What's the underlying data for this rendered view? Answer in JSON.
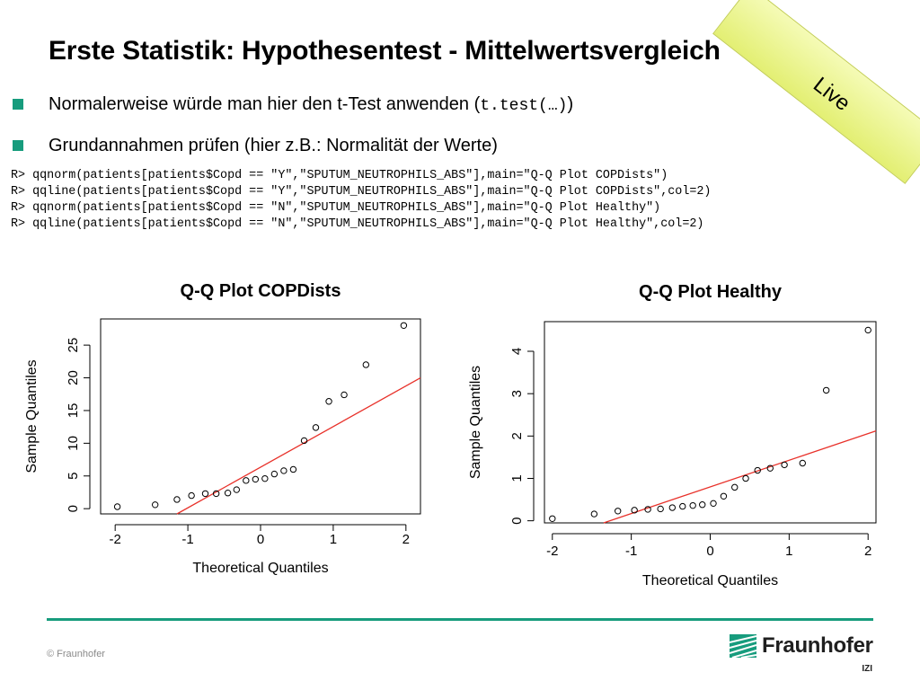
{
  "slide": {
    "title": "Erste Statistik: Hypothesentest - Mittelwertsvergleich",
    "bullets": [
      {
        "text": "Normalerweise würde man hier den t-Test anwenden (",
        "code": "t.test(…)",
        "suffix": ")"
      },
      {
        "text": "Grundannahmen prüfen (hier z.B.: Normalität der Werte)"
      }
    ],
    "code_lines": [
      "R> qqnorm(patients[patients$Copd == \"Y\",\"SPUTUM_NEUTROPHILS_ABS\"],main=\"Q-Q Plot COPDists\")",
      "R> qqline(patients[patients$Copd == \"Y\",\"SPUTUM_NEUTROPHILS_ABS\"],main=\"Q-Q Plot COPDists\",col=2)",
      "R> qqnorm(patients[patients$Copd == \"N\",\"SPUTUM_NEUTROPHILS_ABS\"],main=\"Q-Q Plot Healthy\")",
      "R> qqline(patients[patients$Copd == \"N\",\"SPUTUM_NEUTROPHILS_ABS\"],main=\"Q-Q Plot Healthy\",col=2)"
    ],
    "live_label": "Live"
  },
  "footer": {
    "copyright": "© Fraunhofer",
    "logo_name": "Fraunhofer",
    "logo_sub": "IZI",
    "accent_color": "#179c7d"
  },
  "chart_data": [
    {
      "type": "scatter",
      "title": "Q-Q Plot COPDists",
      "xlabel": "Theoretical Quantiles",
      "ylabel": "Sample Quantiles",
      "xlim": [
        -2.2,
        2.2
      ],
      "ylim": [
        -0.8,
        29
      ],
      "xticks": [
        -2,
        -1,
        0,
        1,
        2
      ],
      "yticks": [
        0,
        5,
        10,
        15,
        20,
        25
      ],
      "x": [
        -1.97,
        -1.45,
        -1.15,
        -0.95,
        -0.76,
        -0.61,
        -0.45,
        -0.33,
        -0.2,
        -0.07,
        0.06,
        0.19,
        0.32,
        0.45,
        0.6,
        0.76,
        0.94,
        1.15,
        1.45,
        1.97
      ],
      "y": [
        0.3,
        0.6,
        1.4,
        2.0,
        2.3,
        2.3,
        2.4,
        2.9,
        4.3,
        4.5,
        4.6,
        5.3,
        5.8,
        6.0,
        10.4,
        12.4,
        16.4,
        17.4,
        22.0,
        28.0
      ],
      "qqline": {
        "x": [
          -1.15,
          2.2
        ],
        "y": [
          -0.8,
          20.0
        ],
        "color": "#e8312a"
      },
      "point_color": "#000000"
    },
    {
      "type": "scatter",
      "title": "Q-Q Plot Healthy",
      "xlabel": "Theoretical Quantiles",
      "ylabel": "Sample Quantiles",
      "xlim": [
        -2.1,
        2.1
      ],
      "ylim": [
        -0.05,
        4.7
      ],
      "xticks": [
        -2,
        -1,
        0,
        1,
        2
      ],
      "yticks": [
        0,
        1,
        2,
        3,
        4
      ],
      "x": [
        -2.0,
        -1.47,
        -1.17,
        -0.96,
        -0.79,
        -0.63,
        -0.48,
        -0.35,
        -0.22,
        -0.1,
        0.04,
        0.17,
        0.31,
        0.45,
        0.6,
        0.76,
        0.94,
        1.17,
        1.47,
        2.0
      ],
      "y": [
        0.05,
        0.16,
        0.23,
        0.25,
        0.27,
        0.28,
        0.31,
        0.34,
        0.36,
        0.38,
        0.41,
        0.58,
        0.79,
        1.0,
        1.19,
        1.24,
        1.32,
        1.36,
        3.08,
        4.5
      ],
      "qqline": {
        "x": [
          -1.35,
          2.1
        ],
        "y": [
          -0.05,
          2.12
        ],
        "color": "#e8312a"
      },
      "point_color": "#000000"
    }
  ]
}
